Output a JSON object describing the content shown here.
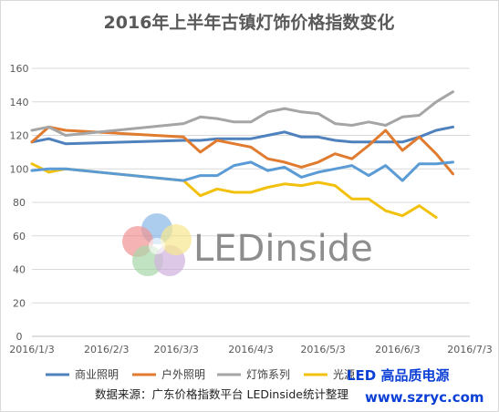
{
  "chart_data": {
    "type": "line",
    "title": "2016年上半年古镇灯饰价格指数变化",
    "x": [
      "2016/1/3",
      "2016/1/10",
      "2016/1/17",
      "2016/3/6",
      "2016/3/13",
      "2016/3/20",
      "2016/3/27",
      "2016/4/3",
      "2016/4/10",
      "2016/4/17",
      "2016/4/24",
      "2016/5/1",
      "2016/5/8",
      "2016/5/15",
      "2016/5/22",
      "2016/5/29",
      "2016/6/5",
      "2016/6/12",
      "2016/6/19",
      "2016/6/26",
      "2016/7/3"
    ],
    "x_tick_labels": [
      "2016/1/3",
      "2016/2/3",
      "2016/3/3",
      "2016/4/3",
      "2016/5/3",
      "2016/6/3",
      "2016/7/3"
    ],
    "x_range": [
      "2016/1/3",
      "2016/7/3"
    ],
    "ylim": [
      0,
      160
    ],
    "y_ticks": [
      0,
      20,
      40,
      60,
      80,
      100,
      120,
      140,
      160
    ],
    "grid": "horizontal",
    "legend_position": "bottom",
    "series": [
      {
        "name": "商业照明",
        "color": "#4F81BD",
        "values": [
          116,
          118,
          115,
          117,
          117,
          118,
          118,
          118,
          120,
          122,
          119,
          119,
          117,
          116,
          116,
          116,
          116,
          119,
          123,
          125,
          null
        ]
      },
      {
        "name": "户外照明",
        "color": "#E07B2F",
        "values": [
          116,
          125,
          123,
          119,
          110,
          117,
          115,
          113,
          106,
          104,
          101,
          104,
          109,
          106,
          114,
          123,
          111,
          119,
          109,
          97,
          null
        ]
      },
      {
        "name": "灯饰系列",
        "color": "#A5A5A5",
        "values": [
          123,
          125,
          120,
          127,
          131,
          130,
          128,
          128,
          134,
          136,
          134,
          133,
          127,
          126,
          128,
          126,
          131,
          132,
          140,
          146,
          null
        ]
      },
      {
        "name": "光源",
        "color": "#F2C10E",
        "values": [
          103,
          98,
          100,
          93,
          84,
          88,
          86,
          86,
          89,
          91,
          90,
          92,
          90,
          82,
          82,
          75,
          72,
          78,
          71,
          null,
          null
        ]
      },
      {
        "name": "",
        "color": "#5B9BD5",
        "values": [
          99,
          100,
          100,
          93,
          96,
          96,
          102,
          104,
          99,
          101,
          95,
          98,
          100,
          102,
          96,
          102,
          93,
          103,
          103,
          104,
          null
        ]
      }
    ]
  },
  "legend": {
    "items": [
      {
        "label": "商业照明",
        "color": "#4F81BD"
      },
      {
        "label": "户外照明",
        "color": "#E07B2F"
      },
      {
        "label": "灯饰系列",
        "color": "#A5A5A5"
      },
      {
        "label": "光源",
        "color": "#F2C10E"
      }
    ]
  },
  "source_note": "数据来源：广东价格指数平台   LEDinside统计整理",
  "watermark": {
    "brand": "LEDinside",
    "site_title": "LED 高品质电源",
    "site_url": "www.szryc.com",
    "brand_color": "#7a7a7a",
    "site_color": "#0b3fd6"
  }
}
